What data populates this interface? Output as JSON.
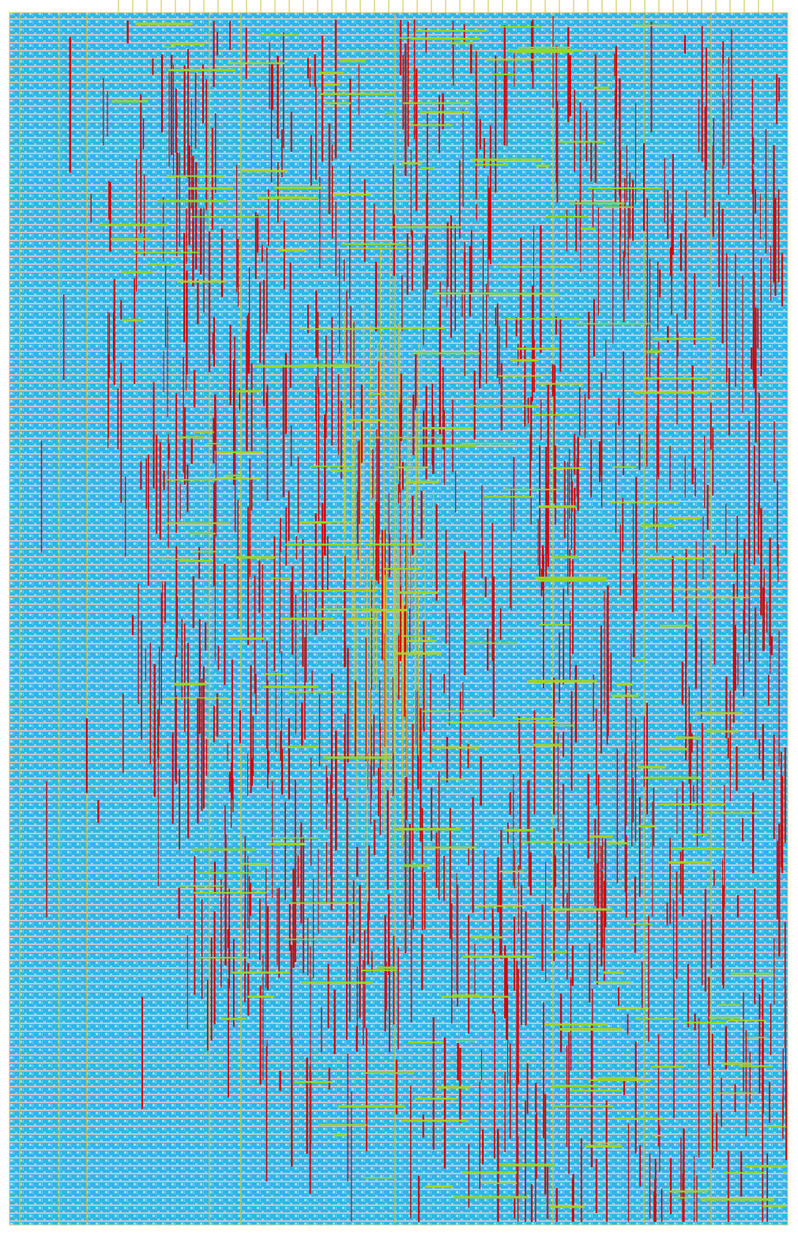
{
  "diagram": {
    "kind": "chip layout / routing view",
    "colors": {
      "background": "#ffffff",
      "cell_fill": "#2cb7e8",
      "cell_stripe": "#c4c4cc",
      "cell_detail": "#e8f6fc",
      "power_rail": "#c8c43c",
      "metal_vertical": "#d40000",
      "metal_horizontal": "#9bd22a",
      "io_pin": "#c8c43c",
      "die_outline": "#d8c878"
    },
    "layers": [
      "standard-cells",
      "power-rails",
      "vertical-metal",
      "horizontal-metal",
      "io-pins"
    ]
  }
}
